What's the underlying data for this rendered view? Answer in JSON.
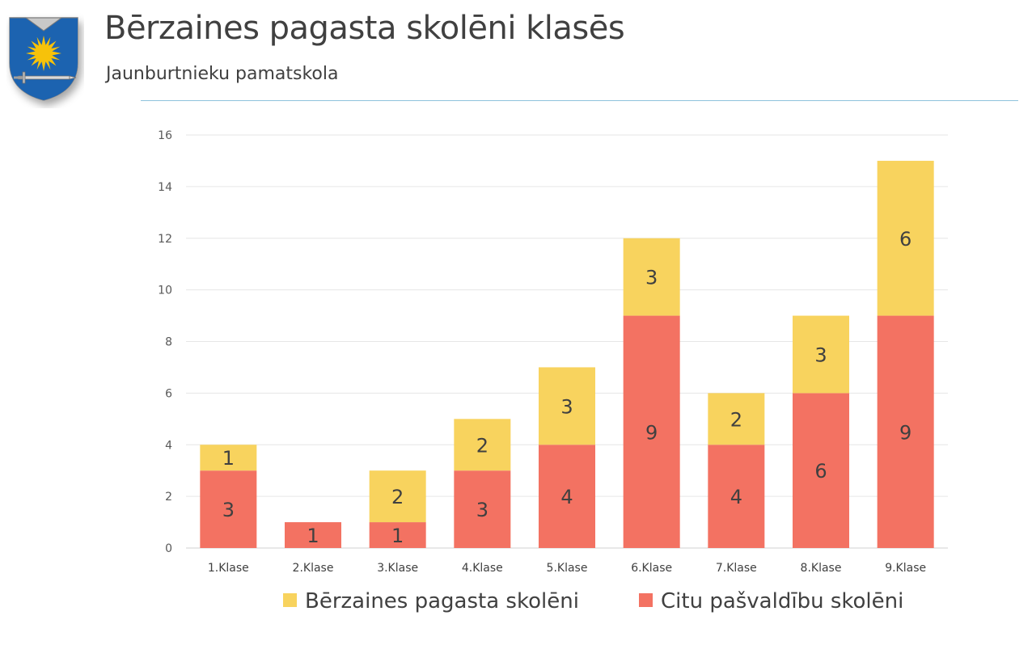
{
  "header": {
    "title": "Bērzaines pagasta skolēni klasēs",
    "subtitle": "Jaunburtnieku pamatskola"
  },
  "crest": {
    "icon": "coat-of-arms-sun-sword-icon",
    "colors": {
      "shield": "#1f63b0",
      "sun": "#f6c20a",
      "rim": "#c8c8c8"
    }
  },
  "chart_data": {
    "type": "bar",
    "stacked": true,
    "categories": [
      "1.Klase",
      "2.Klase",
      "3.Klase",
      "4.Klase",
      "5.Klase",
      "6.Klase",
      "7.Klase",
      "8.Klase",
      "9.Klase"
    ],
    "series": [
      {
        "name": "Citu pašvaldību skolēni",
        "color": "#f37262",
        "values": [
          3,
          1,
          1,
          3,
          4,
          9,
          4,
          6,
          9
        ]
      },
      {
        "name": "Bērzaines pagasta skolēni",
        "color": "#f8d35e",
        "values": [
          1,
          0,
          2,
          2,
          3,
          3,
          2,
          3,
          6
        ]
      }
    ],
    "legend_order": [
      "Bērzaines pagasta skolēni",
      "Citu pašvaldību skolēni"
    ],
    "legend_position": "bottom",
    "ylim": [
      0,
      16
    ],
    "yticks": [
      0,
      2,
      4,
      6,
      8,
      10,
      12,
      14,
      16
    ],
    "grid": true,
    "data_labels": true
  }
}
